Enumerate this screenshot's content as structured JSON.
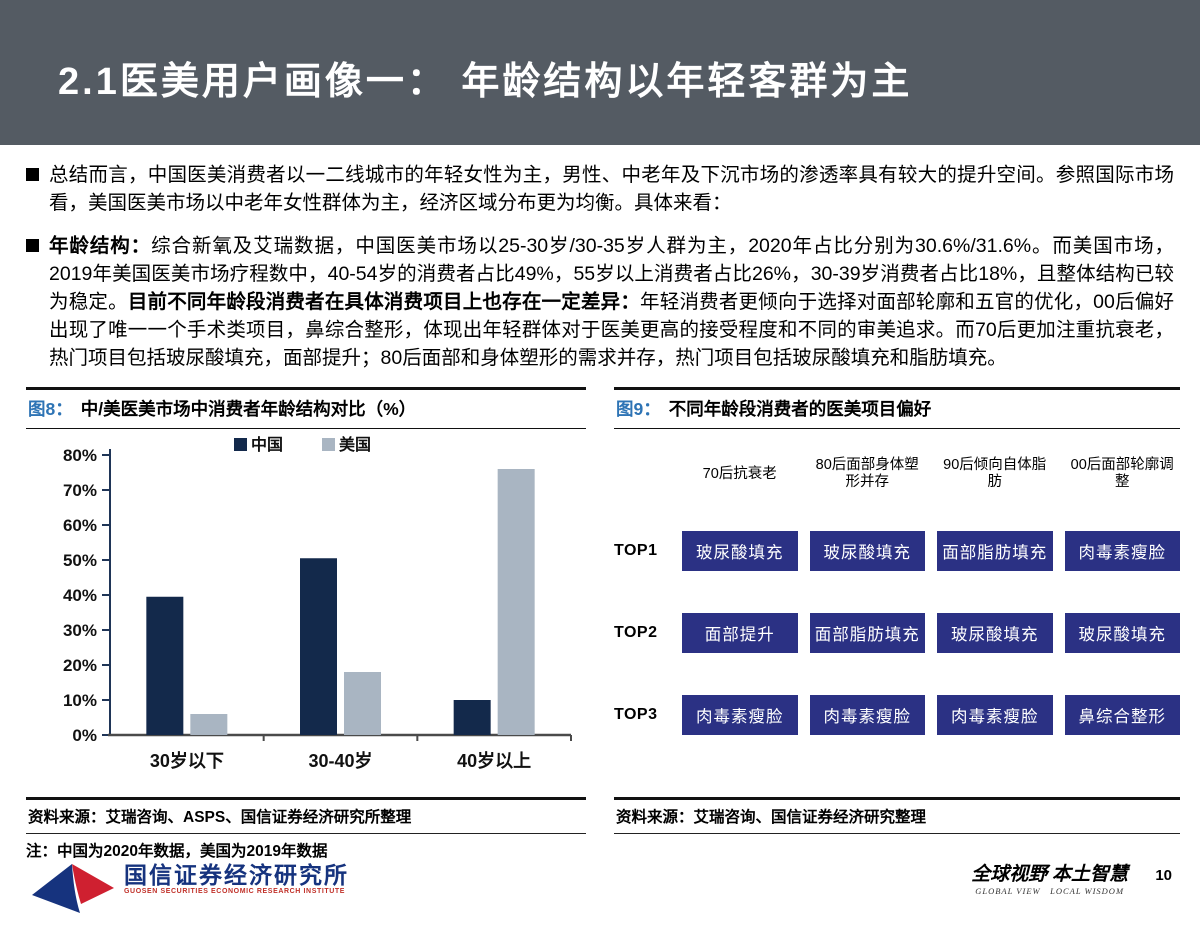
{
  "header": {
    "title": "2.1医美用户画像一： 年龄结构以年轻客群为主"
  },
  "bullets": [
    {
      "text": "总结而言，中国医美消费者以一二线城市的年轻女性为主，男性、中老年及下沉市场的渗透率具有较大的提升空间。参照国际市场看，美国医美市场以中老年女性群体为主，经济区域分布更为均衡。具体来看："
    },
    {
      "lead_bold": "年龄结构：",
      "text_before": "综合新氧及艾瑞数据，中国医美市场以25-30岁/30-35岁人群为主，2020年占比分别为30.6%/31.6%。而美国市场，2019年美国医美市场疗程数中，40-54岁的消费者占比49%，55岁以上消费者占比26%，30-39岁消费者占比18%，且整体结构已较为稳定。",
      "inner_bold": "目前不同年龄段消费者在具体消费项目上也存在一定差异：",
      "text_after": "年轻消费者更倾向于选择对面部轮廓和五官的优化，00后偏好出现了唯一一个手术类项目，鼻综合整形，体现出年轻群体对于医美更高的接受程度和不同的审美追求。而70后更加注重抗衰老，热门项目包括玻尿酸填充，面部提升；80后面部和身体塑形的需求并存，热门项目包括玻尿酸填充和脂肪填充。"
    }
  ],
  "figure8": {
    "title_label": "图8：",
    "title_text": "中/美医美市场中消费者年龄结构对比（%）",
    "source": "资料来源：艾瑞咨询、ASPS、国信证券经济研究所整理",
    "note": "注：中国为2020年数据，美国为2019年数据"
  },
  "chart_data": {
    "type": "bar",
    "title": "中/美医美市场中消费者年龄结构对比（%）",
    "categories": [
      "30岁以下",
      "30-40岁",
      "40岁以上"
    ],
    "series": [
      {
        "name": "中国",
        "color": "#13294b",
        "values": [
          39.5,
          50.5,
          10
        ]
      },
      {
        "name": "美国",
        "color": "#a9b5c2",
        "values": [
          6,
          18,
          76
        ]
      }
    ],
    "ylim": [
      0,
      80
    ],
    "ytick_step": 10,
    "ytick_suffix": "%",
    "legend_position": "top",
    "grid": false
  },
  "figure9": {
    "title_label": "图9：",
    "title_text": "不同年龄段消费者的医美项目偏好",
    "source": "资料来源：艾瑞咨询、国信证券经济研究整理",
    "columns": [
      "70后抗衰老",
      "80后面部身体塑形并存",
      "90后倾向自体脂肪",
      "00后面部轮廓调整"
    ],
    "rows": [
      {
        "label": "TOP1",
        "cells": [
          "玻尿酸填充",
          "玻尿酸填充",
          "面部脂肪填充",
          "肉毒素瘦脸"
        ]
      },
      {
        "label": "TOP2",
        "cells": [
          "面部提升",
          "面部脂肪填充",
          "玻尿酸填充",
          "玻尿酸填充"
        ]
      },
      {
        "label": "TOP3",
        "cells": [
          "肉毒素瘦脸",
          "肉毒素瘦脸",
          "肉毒素瘦脸",
          "鼻综合整形"
        ]
      }
    ],
    "cell_bg": "#2b3184"
  },
  "footer": {
    "logo_cn": "国信证券经济研究所",
    "logo_en": "GUOSEN SECURITIES ECONOMIC RESEARCH INSTITUTE",
    "slogan_cn": "全球视野 本土智慧",
    "slogan_en": "GLOBAL VIEW　LOCAL WISDOM",
    "page_number": "10"
  },
  "colors": {
    "header_bg": "#545b63",
    "figure_label_blue": "#2e74b5",
    "china_bar": "#13294b",
    "us_bar": "#a9b5c2",
    "pref_box_navy": "#2b3184",
    "logo_blue": "#16337e",
    "logo_red": "#cf2030"
  }
}
